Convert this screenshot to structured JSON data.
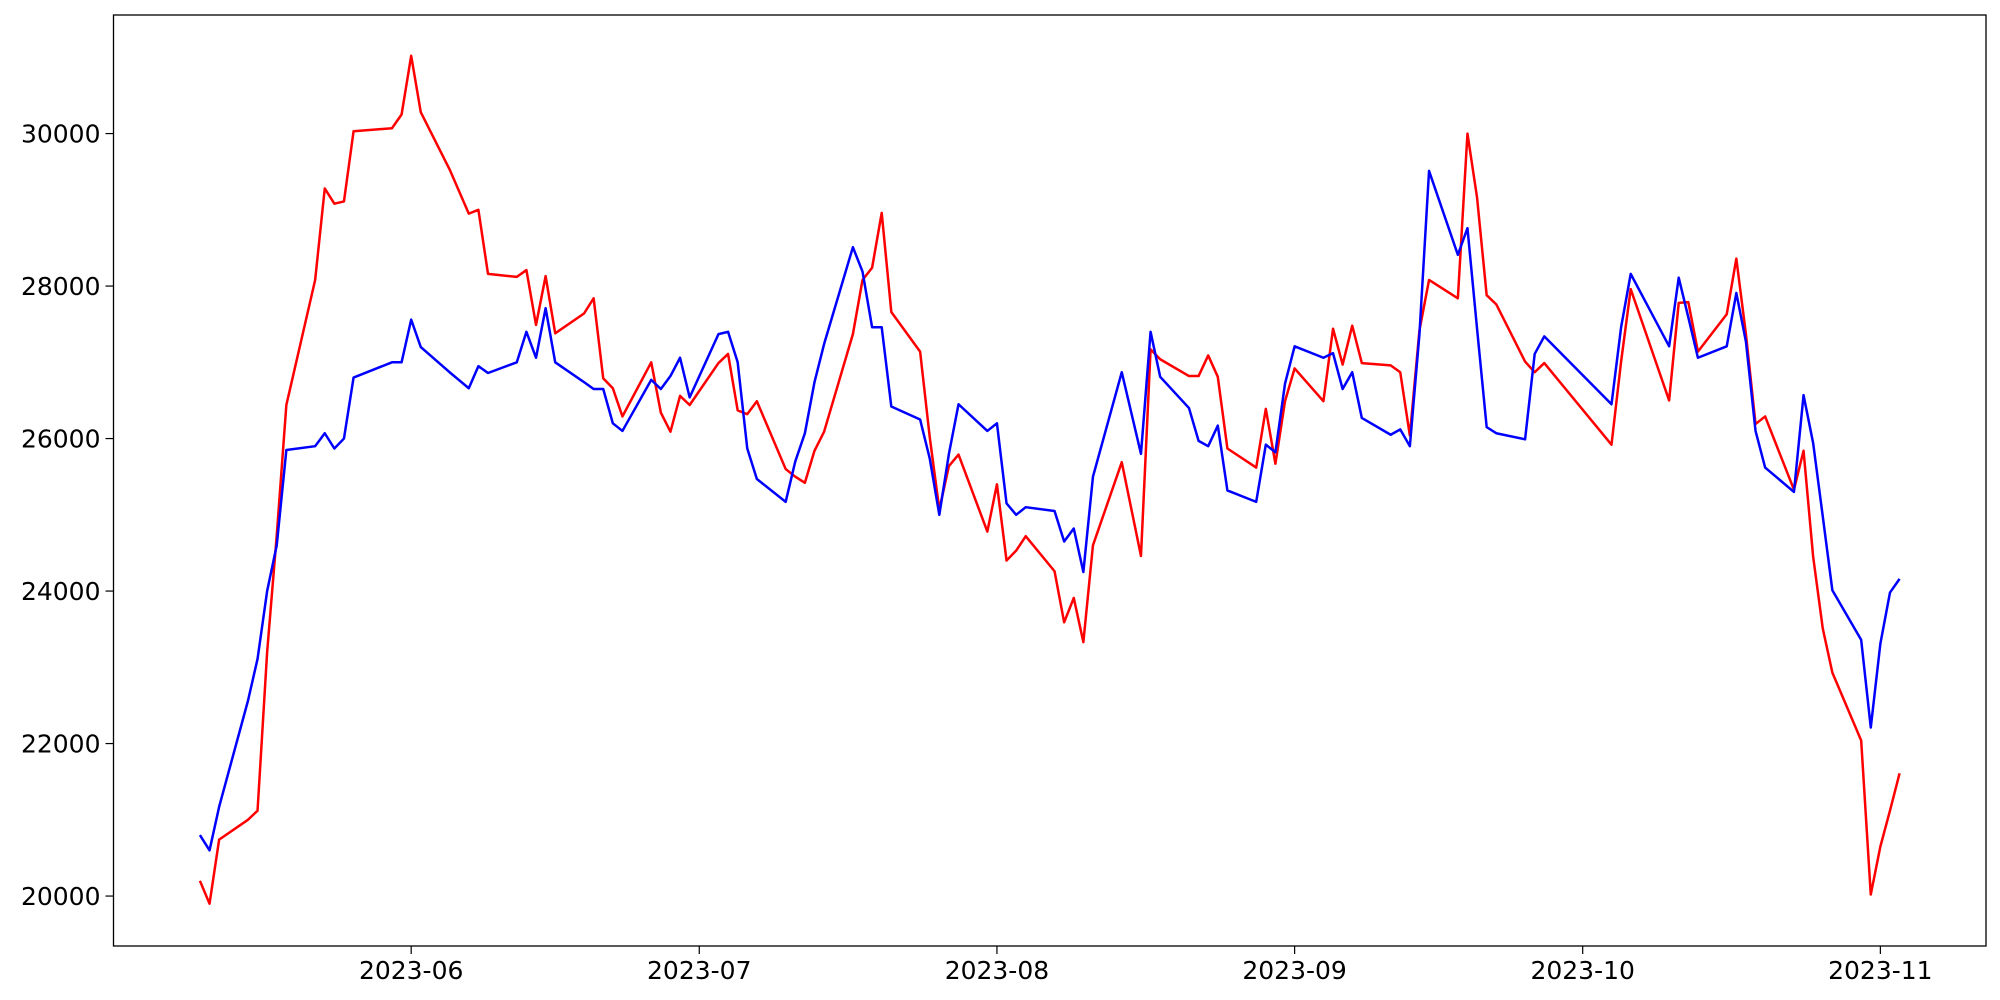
{
  "chart_data": {
    "type": "line",
    "x": [
      "2023-05-10",
      "2023-05-11",
      "2023-05-12",
      "2023-05-15",
      "2023-05-16",
      "2023-05-17",
      "2023-05-18",
      "2023-05-19",
      "2023-05-22",
      "2023-05-23",
      "2023-05-24",
      "2023-05-25",
      "2023-05-26",
      "2023-05-30",
      "2023-05-31",
      "2023-06-01",
      "2023-06-02",
      "2023-06-05",
      "2023-06-07",
      "2023-06-08",
      "2023-06-09",
      "2023-06-12",
      "2023-06-13",
      "2023-06-14",
      "2023-06-15",
      "2023-06-16",
      "2023-06-19",
      "2023-06-20",
      "2023-06-21",
      "2023-06-22",
      "2023-06-23",
      "2023-06-26",
      "2023-06-27",
      "2023-06-28",
      "2023-06-29",
      "2023-06-30",
      "2023-07-03",
      "2023-07-04",
      "2023-07-05",
      "2023-07-06",
      "2023-07-07",
      "2023-07-10",
      "2023-07-11",
      "2023-07-12",
      "2023-07-13",
      "2023-07-14",
      "2023-07-17",
      "2023-07-18",
      "2023-07-19",
      "2023-07-20",
      "2023-07-21",
      "2023-07-24",
      "2023-07-25",
      "2023-07-26",
      "2023-07-27",
      "2023-07-28",
      "2023-07-31",
      "2023-08-01",
      "2023-08-02",
      "2023-08-03",
      "2023-08-04",
      "2023-08-07",
      "2023-08-08",
      "2023-08-09",
      "2023-08-10",
      "2023-08-11",
      "2023-08-14",
      "2023-08-16",
      "2023-08-17",
      "2023-08-18",
      "2023-08-21",
      "2023-08-22",
      "2023-08-23",
      "2023-08-24",
      "2023-08-25",
      "2023-08-28",
      "2023-08-29",
      "2023-08-30",
      "2023-08-31",
      "2023-09-01",
      "2023-09-04",
      "2023-09-05",
      "2023-09-06",
      "2023-09-07",
      "2023-09-08",
      "2023-09-11",
      "2023-09-12",
      "2023-09-13",
      "2023-09-14",
      "2023-09-15",
      "2023-09-18",
      "2023-09-19",
      "2023-09-20",
      "2023-09-21",
      "2023-09-22",
      "2023-09-25",
      "2023-09-26",
      "2023-09-27",
      "2023-10-04",
      "2023-10-05",
      "2023-10-06",
      "2023-10-10",
      "2023-10-11",
      "2023-10-12",
      "2023-10-13",
      "2023-10-16",
      "2023-10-17",
      "2023-10-18",
      "2023-10-19",
      "2023-10-20",
      "2023-10-23",
      "2023-10-24",
      "2023-10-25",
      "2023-10-26",
      "2023-10-27",
      "2023-10-30",
      "2023-10-31",
      "2023-11-01",
      "2023-11-02",
      "2023-11-03"
    ],
    "series": [
      {
        "color": "#ff0000",
        "values": [
          20200,
          19900,
          20740,
          21000,
          21120,
          23200,
          24730,
          26440,
          28080,
          29280,
          29080,
          29110,
          30030,
          30070,
          30250,
          31020,
          30280,
          29530,
          28950,
          29000,
          28160,
          28120,
          28210,
          27490,
          28130,
          27380,
          27640,
          27840,
          26790,
          26660,
          26290,
          27000,
          26340,
          26090,
          26560,
          26440,
          26990,
          27110,
          26370,
          26320,
          26490,
          25600,
          25500,
          25420,
          25840,
          26090,
          27370,
          28080,
          28240,
          28960,
          27660,
          27140,
          26020,
          25070,
          25640,
          25790,
          24780,
          25400,
          24400,
          24530,
          24720,
          24260,
          23590,
          23910,
          23330,
          24600,
          25690,
          24460,
          27170,
          27040,
          26820,
          26820,
          27090,
          26810,
          25870,
          25620,
          26390,
          25670,
          26490,
          26920,
          26490,
          27440,
          26970,
          27480,
          26990,
          26960,
          26870,
          26040,
          27420,
          28080,
          27840,
          30000,
          29160,
          27880,
          27760,
          27010,
          26870,
          26990,
          25920,
          27010,
          27960,
          26500,
          27780,
          27790,
          27140,
          27630,
          28360,
          27370,
          26190,
          26290,
          25330,
          25840,
          24450,
          23510,
          22930,
          22040,
          20020,
          20650,
          21120,
          21610
        ]
      },
      {
        "color": "#0000ff",
        "values": [
          20800,
          20600,
          21170,
          22560,
          23110,
          24000,
          24600,
          25850,
          25900,
          26070,
          25870,
          26000,
          26800,
          27000,
          27000,
          27560,
          27200,
          26870,
          26660,
          26950,
          26860,
          27000,
          27400,
          27060,
          27710,
          27000,
          26740,
          26650,
          26650,
          26200,
          26100,
          26770,
          26650,
          26820,
          27060,
          26540,
          27370,
          27400,
          27000,
          25870,
          25470,
          25170,
          25700,
          26070,
          26740,
          27240,
          28510,
          28190,
          27460,
          27460,
          26420,
          26250,
          25740,
          25000,
          25800,
          26450,
          26100,
          26200,
          25150,
          25000,
          25100,
          25050,
          24650,
          24820,
          24250,
          25500,
          26870,
          25800,
          27400,
          26810,
          26400,
          25970,
          25900,
          26170,
          25320,
          25170,
          25920,
          25820,
          26720,
          27210,
          27060,
          27120,
          26650,
          26870,
          26270,
          26050,
          26120,
          25900,
          27370,
          29510,
          28410,
          28760,
          27440,
          26150,
          26070,
          25990,
          27110,
          27340,
          26450,
          27460,
          28160,
          27210,
          28110,
          27590,
          27060,
          27210,
          27910,
          27270,
          26100,
          25620,
          25300,
          26570,
          25940,
          24980,
          24010,
          23360,
          22210,
          23310,
          23980,
          24160
        ]
      }
    ],
    "xlim": [
      "2023-05-01",
      "2023-11-12"
    ],
    "xticks": [
      {
        "value": "2023-06",
        "label": "2023-06"
      },
      {
        "value": "2023-07",
        "label": "2023-07"
      },
      {
        "value": "2023-08",
        "label": "2023-08"
      },
      {
        "value": "2023-09",
        "label": "2023-09"
      },
      {
        "value": "2023-10",
        "label": "2023-10"
      },
      {
        "value": "2023-11",
        "label": "2023-11"
      }
    ],
    "ylim": [
      19345,
      31555
    ],
    "yticks": [
      20000,
      22000,
      24000,
      26000,
      28000,
      30000
    ],
    "grid": false
  }
}
